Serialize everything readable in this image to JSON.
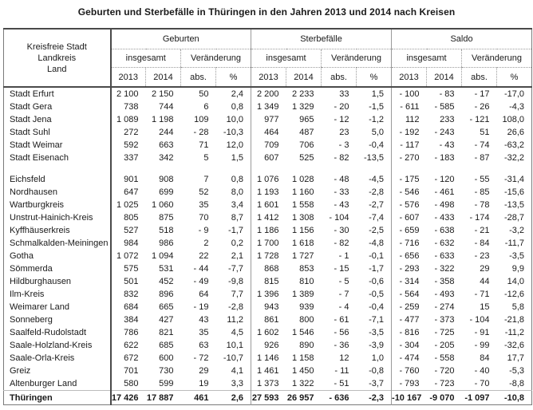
{
  "title": "Geburten und Sterbefälle in Thüringen in den Jahren 2013 und 2014 nach Kreisen",
  "colors": {
    "background": "#ffffff",
    "text": "#1a1a1a",
    "border_dark": "#4a4a4a",
    "border_light": "#9a9a9a"
  },
  "table": {
    "row_header_lines": [
      "Kreisfreie Stadt",
      "Landkreis",
      "Land"
    ],
    "group_labels": [
      "Geburten",
      "Sterbefälle",
      "Saldo"
    ],
    "subgroup_labels": [
      "insgesamt",
      "Veränderung"
    ],
    "year_labels": [
      "2013",
      "2014",
      "abs.",
      "%"
    ],
    "sections": [
      {
        "name": "kreisfreie-staedte",
        "spacer_after": true,
        "rows": [
          {
            "label": "Stadt Erfurt",
            "values": [
              "2 100",
              "2 150",
              "50",
              "2,4",
              "2 200",
              "2 233",
              "33",
              "1,5",
              "- 100",
              "- 83",
              "- 17",
              "-17,0"
            ]
          },
          {
            "label": "Stadt Gera",
            "values": [
              "738",
              "744",
              "6",
              "0,8",
              "1 349",
              "1 329",
              "- 20",
              "-1,5",
              "- 611",
              "- 585",
              "- 26",
              "-4,3"
            ]
          },
          {
            "label": "Stadt Jena",
            "values": [
              "1 089",
              "1 198",
              "109",
              "10,0",
              "977",
              "965",
              "- 12",
              "-1,2",
              "112",
              "233",
              "- 121",
              "108,0"
            ]
          },
          {
            "label": "Stadt Suhl",
            "values": [
              "272",
              "244",
              "- 28",
              "-10,3",
              "464",
              "487",
              "23",
              "5,0",
              "- 192",
              "- 243",
              "51",
              "26,6"
            ]
          },
          {
            "label": "Stadt Weimar",
            "values": [
              "592",
              "663",
              "71",
              "12,0",
              "709",
              "706",
              "- 3",
              "-0,4",
              "- 117",
              "- 43",
              "- 74",
              "-63,2"
            ]
          },
          {
            "label": "Stadt Eisenach",
            "values": [
              "337",
              "342",
              "5",
              "1,5",
              "607",
              "525",
              "- 82",
              "-13,5",
              "- 270",
              "- 183",
              "- 87",
              "-32,2"
            ]
          }
        ]
      },
      {
        "name": "landkreise",
        "spacer_after": false,
        "rows": [
          {
            "label": "Eichsfeld",
            "values": [
              "901",
              "908",
              "7",
              "0,8",
              "1 076",
              "1 028",
              "- 48",
              "-4,5",
              "- 175",
              "- 120",
              "- 55",
              "-31,4"
            ]
          },
          {
            "label": "Nordhausen",
            "values": [
              "647",
              "699",
              "52",
              "8,0",
              "1 193",
              "1 160",
              "- 33",
              "-2,8",
              "- 546",
              "- 461",
              "- 85",
              "-15,6"
            ]
          },
          {
            "label": "Wartburgkreis",
            "values": [
              "1 025",
              "1 060",
              "35",
              "3,4",
              "1 601",
              "1 558",
              "- 43",
              "-2,7",
              "- 576",
              "- 498",
              "- 78",
              "-13,5"
            ]
          },
          {
            "label": "Unstrut-Hainich-Kreis",
            "values": [
              "805",
              "875",
              "70",
              "8,7",
              "1 412",
              "1 308",
              "- 104",
              "-7,4",
              "- 607",
              "- 433",
              "- 174",
              "-28,7"
            ]
          },
          {
            "label": "Kyffhäuserkreis",
            "values": [
              "527",
              "518",
              "- 9",
              "-1,7",
              "1 186",
              "1 156",
              "- 30",
              "-2,5",
              "- 659",
              "- 638",
              "- 21",
              "-3,2"
            ]
          },
          {
            "label": "Schmalkalden-Meiningen",
            "values": [
              "984",
              "986",
              "2",
              "0,2",
              "1 700",
              "1 618",
              "- 82",
              "-4,8",
              "- 716",
              "- 632",
              "- 84",
              "-11,7"
            ]
          },
          {
            "label": "Gotha",
            "values": [
              "1 072",
              "1 094",
              "22",
              "2,1",
              "1 728",
              "1 727",
              "- 1",
              "-0,1",
              "- 656",
              "- 633",
              "- 23",
              "-3,5"
            ]
          },
          {
            "label": "Sömmerda",
            "values": [
              "575",
              "531",
              "- 44",
              "-7,7",
              "868",
              "853",
              "- 15",
              "-1,7",
              "- 293",
              "- 322",
              "29",
              "9,9"
            ]
          },
          {
            "label": "Hildburghausen",
            "values": [
              "501",
              "452",
              "- 49",
              "-9,8",
              "815",
              "810",
              "- 5",
              "-0,6",
              "- 314",
              "- 358",
              "44",
              "14,0"
            ]
          },
          {
            "label": "Ilm-Kreis",
            "values": [
              "832",
              "896",
              "64",
              "7,7",
              "1 396",
              "1 389",
              "- 7",
              "-0,5",
              "- 564",
              "- 493",
              "- 71",
              "-12,6"
            ]
          },
          {
            "label": "Weimarer Land",
            "values": [
              "684",
              "665",
              "- 19",
              "-2,8",
              "943",
              "939",
              "- 4",
              "-0,4",
              "- 259",
              "- 274",
              "15",
              "5,8"
            ]
          },
          {
            "label": "Sonneberg",
            "values": [
              "384",
              "427",
              "43",
              "11,2",
              "861",
              "800",
              "- 61",
              "-7,1",
              "- 477",
              "- 373",
              "- 104",
              "-21,8"
            ]
          },
          {
            "label": "Saalfeld-Rudolstadt",
            "values": [
              "786",
              "821",
              "35",
              "4,5",
              "1 602",
              "1 546",
              "- 56",
              "-3,5",
              "- 816",
              "- 725",
              "- 91",
              "-11,2"
            ]
          },
          {
            "label": "Saale-Holzland-Kreis",
            "values": [
              "622",
              "685",
              "63",
              "10,1",
              "926",
              "890",
              "- 36",
              "-3,9",
              "- 304",
              "- 205",
              "- 99",
              "-32,6"
            ]
          },
          {
            "label": "Saale-Orla-Kreis",
            "values": [
              "672",
              "600",
              "- 72",
              "-10,7",
              "1 146",
              "1 158",
              "12",
              "1,0",
              "- 474",
              "- 558",
              "84",
              "17,7"
            ]
          },
          {
            "label": "Greiz",
            "values": [
              "701",
              "730",
              "29",
              "4,1",
              "1 461",
              "1 450",
              "- 11",
              "-0,8",
              "- 760",
              "- 720",
              "- 40",
              "-5,3"
            ]
          },
          {
            "label": "Altenburger Land",
            "values": [
              "580",
              "599",
              "19",
              "3,3",
              "1 373",
              "1 322",
              "- 51",
              "-3,7",
              "- 793",
              "- 723",
              "- 70",
              "-8,8"
            ]
          }
        ]
      },
      {
        "name": "total",
        "total": true,
        "spacer_after": false,
        "rows": [
          {
            "label": "Thüringen",
            "values": [
              "17 426",
              "17 887",
              "461",
              "2,6",
              "27 593",
              "26 957",
              "- 636",
              "-2,3",
              "-10 167",
              "-9 070",
              "-1 097",
              "-10,8"
            ]
          }
        ]
      }
    ]
  }
}
